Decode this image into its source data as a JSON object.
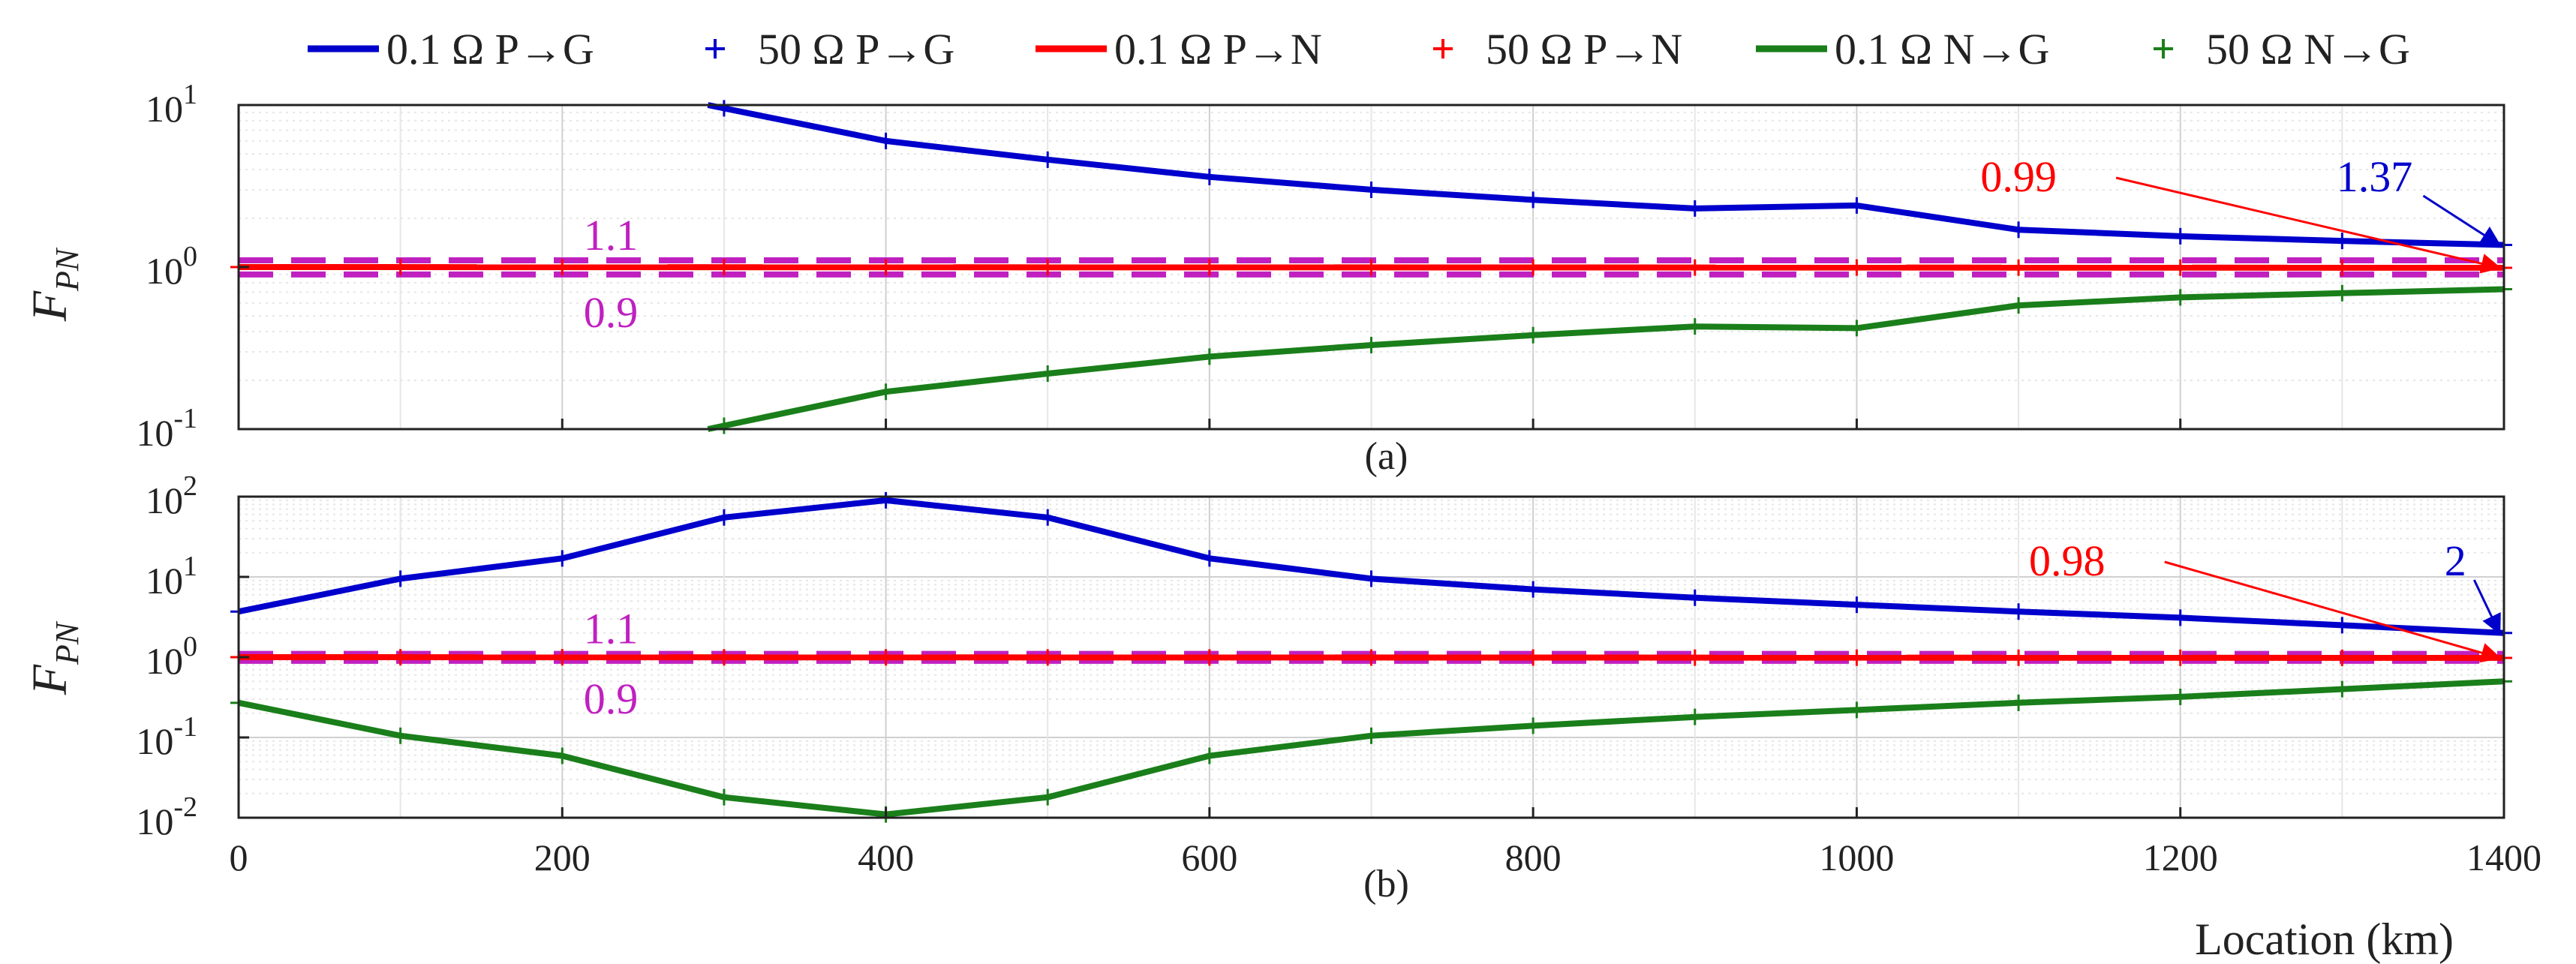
{
  "legend": [
    {
      "label": "0.1 Ω P→G",
      "color": "#0000cc",
      "kind": "line"
    },
    {
      "label": "50 Ω P→G",
      "color": "#0000cc",
      "kind": "marker"
    },
    {
      "label": "0.1 Ω P→N",
      "color": "#ff0000",
      "kind": "line"
    },
    {
      "label": "50 Ω P→N",
      "color": "#ff0000",
      "kind": "marker"
    },
    {
      "label": "0.1 Ω N→G",
      "color": "#1a7f1a",
      "kind": "line"
    },
    {
      "label": "50 Ω N→G",
      "color": "#1a7f1a",
      "kind": "marker"
    }
  ],
  "xlabel": "Location (km)",
  "colors": {
    "pg": "#0000cc",
    "pn": "#ff0000",
    "ng": "#1a7f1a",
    "threshold": "#c020c0",
    "grid": "#d0d0d0"
  },
  "chart_data": [
    {
      "type": "line",
      "caption": "(a)",
      "ylabel_main": "F",
      "ylabel_sub": "PN",
      "yscale": "log",
      "ylim": [
        0.1,
        10
      ],
      "xlim": [
        0,
        1400
      ],
      "xticks": [
        0,
        200,
        400,
        600,
        800,
        1000,
        1200,
        1400
      ],
      "yticks": [
        {
          "value": 0.1,
          "base": "10",
          "exp": "-1"
        },
        {
          "value": 1,
          "base": "10",
          "exp": "0"
        },
        {
          "value": 10,
          "base": "10",
          "exp": "1"
        }
      ],
      "series": [
        {
          "name": "0.1 Ω P→G",
          "key": "pg",
          "x": [
            290,
            400,
            500,
            600,
            700,
            800,
            900,
            1000,
            1100,
            1200,
            1300,
            1400
          ],
          "y": [
            10,
            6,
            4.6,
            3.6,
            3.0,
            2.6,
            2.3,
            2.4,
            1.7,
            1.55,
            1.45,
            1.37
          ]
        },
        {
          "name": "0.1 Ω P→N",
          "key": "pn",
          "x": [
            0,
            1400
          ],
          "y": [
            1.0,
            0.99
          ]
        },
        {
          "name": "0.1 Ω N→G",
          "key": "ng",
          "x": [
            290,
            400,
            500,
            600,
            700,
            800,
            900,
            1000,
            1100,
            1200,
            1300,
            1400
          ],
          "y": [
            0.1,
            0.17,
            0.22,
            0.28,
            0.33,
            0.38,
            0.43,
            0.42,
            0.58,
            0.65,
            0.69,
            0.73
          ]
        }
      ],
      "markers_x": [
        0,
        100,
        200,
        300,
        400,
        500,
        600,
        700,
        800,
        900,
        1000,
        1100,
        1200,
        1300,
        1400
      ],
      "thresholds": [
        1.1,
        0.9
      ],
      "threshold_labels": [
        "1.1",
        "0.9"
      ],
      "annotations": [
        {
          "text": "0.99",
          "key": "pn",
          "point": [
            1400,
            0.99
          ]
        },
        {
          "text": "1.37",
          "key": "pg",
          "point": [
            1400,
            1.37
          ]
        }
      ]
    },
    {
      "type": "line",
      "caption": "(b)",
      "ylabel_main": "F",
      "ylabel_sub": "PN",
      "yscale": "log",
      "ylim": [
        0.01,
        100
      ],
      "xlim": [
        0,
        1400
      ],
      "xticks": [
        0,
        200,
        400,
        600,
        800,
        1000,
        1200,
        1400
      ],
      "yticks": [
        {
          "value": 0.01,
          "base": "10",
          "exp": "-2"
        },
        {
          "value": 0.1,
          "base": "10",
          "exp": "-1"
        },
        {
          "value": 1,
          "base": "10",
          "exp": "0"
        },
        {
          "value": 10,
          "base": "10",
          "exp": "1"
        },
        {
          "value": 100,
          "base": "10",
          "exp": "2"
        }
      ],
      "series": [
        {
          "name": "0.1 Ω P→G",
          "key": "pg",
          "x": [
            0,
            100,
            200,
            300,
            400,
            500,
            600,
            700,
            800,
            900,
            1000,
            1100,
            1200,
            1300,
            1400
          ],
          "y": [
            3.7,
            9.5,
            17,
            55,
            90,
            55,
            17,
            9.5,
            7,
            5.5,
            4.5,
            3.7,
            3.1,
            2.5,
            2.0
          ]
        },
        {
          "name": "0.1 Ω P→N",
          "key": "pn",
          "x": [
            0,
            1400
          ],
          "y": [
            1.0,
            0.98
          ]
        },
        {
          "name": "0.1 Ω N→G",
          "key": "ng",
          "x": [
            0,
            100,
            200,
            300,
            400,
            500,
            600,
            700,
            800,
            900,
            1000,
            1100,
            1200,
            1300,
            1400
          ],
          "y": [
            0.27,
            0.105,
            0.059,
            0.018,
            0.011,
            0.018,
            0.059,
            0.105,
            0.14,
            0.18,
            0.22,
            0.27,
            0.32,
            0.4,
            0.5
          ]
        }
      ],
      "markers_x": [
        0,
        100,
        200,
        300,
        400,
        500,
        600,
        700,
        800,
        900,
        1000,
        1100,
        1200,
        1300,
        1400
      ],
      "thresholds": [
        1.1,
        0.9
      ],
      "threshold_labels": [
        "1.1",
        "0.9"
      ],
      "annotations": [
        {
          "text": "0.98",
          "key": "pn",
          "point": [
            1400,
            0.98
          ]
        },
        {
          "text": "2",
          "key": "pg",
          "point": [
            1400,
            2.0
          ]
        }
      ]
    }
  ]
}
